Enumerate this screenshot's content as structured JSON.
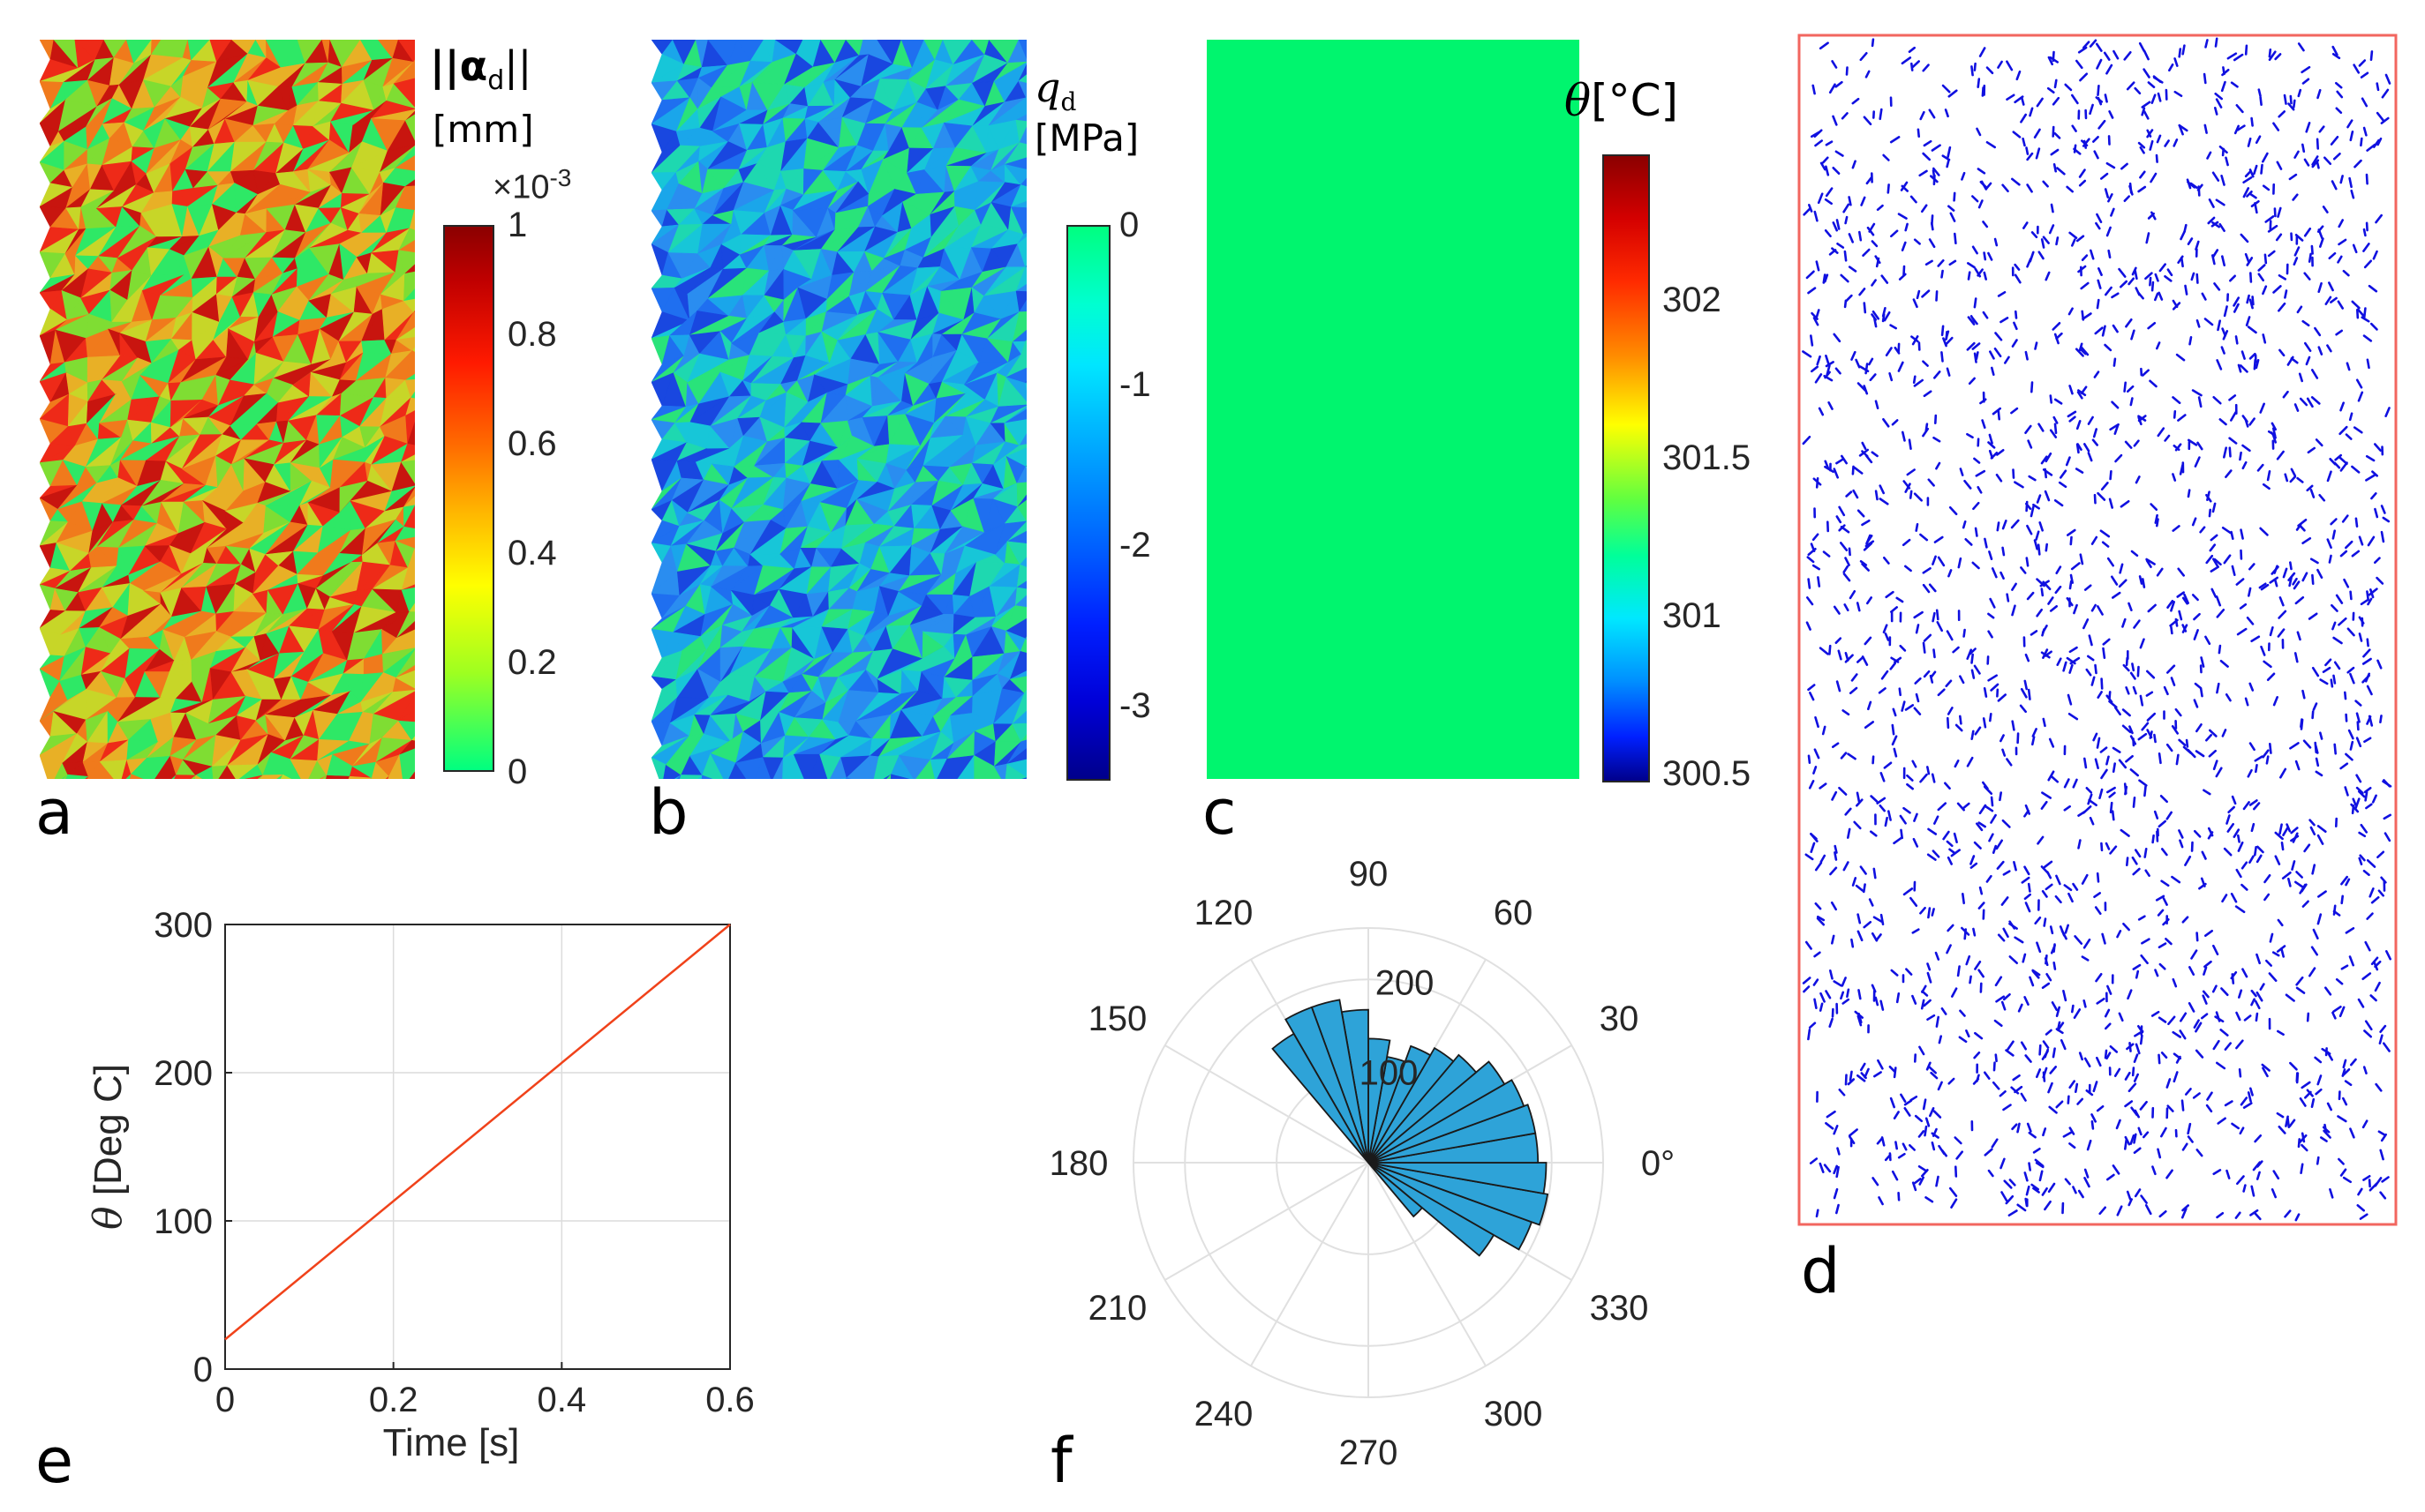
{
  "panels": {
    "a": {
      "label": "a",
      "cb_title_line1": "||α",
      "cb_title_sub": "d",
      "cb_title_line1_end": "||",
      "cb_title_line2": "[mm]",
      "multiplier_base": "×10",
      "multiplier_exp": "-3",
      "ticks": [
        "1",
        "0.8",
        "0.6",
        "0.4",
        "0.2",
        "0"
      ],
      "palette": [
        "#2ee866",
        "#7fdd33",
        "#c7d628",
        "#e8b026",
        "#f07a1c",
        "#ee2a18",
        "#c8150f"
      ]
    },
    "b": {
      "label": "b",
      "cb_title_line1": "q",
      "cb_title_sub": "d",
      "cb_title_line2": "[MPa]",
      "ticks": [
        "0",
        "-1",
        "-2",
        "-3"
      ],
      "palette": [
        "#29e37a",
        "#1ed8b0",
        "#17c6d8",
        "#1aa6ea",
        "#2a8df0",
        "#1f6ff0",
        "#1947e0"
      ]
    },
    "c": {
      "label": "c",
      "cb_title_sym": "θ",
      "cb_title_unit": "[°C]",
      "ticks": [
        "302",
        "301.5",
        "301",
        "300.5"
      ],
      "fill": "#00f56e"
    },
    "d": {
      "label": "d",
      "border_color": "#f2665f",
      "dash_color": "#1010e0"
    },
    "e": {
      "label": "e",
      "xlabel": "Time [s]",
      "ylabel_sym": "θ",
      "ylabel_text": " [Deg C]",
      "line_color": "#f0421a"
    },
    "f": {
      "label": "f",
      "bar_color": "#2ea3d8"
    }
  },
  "chart_data": [
    {
      "panel": "e",
      "type": "line",
      "title": "",
      "xlabel": "Time [s]",
      "ylabel": "θ [Deg C]",
      "xlim": [
        0,
        0.6
      ],
      "ylim": [
        0,
        300
      ],
      "xticks": [
        0,
        0.2,
        0.4,
        0.6
      ],
      "xtick_labels": [
        "0",
        "0.2",
        "0.4",
        "0.6"
      ],
      "yticks": [
        0,
        100,
        200,
        300
      ],
      "ytick_labels": [
        "0",
        "100",
        "200",
        "300"
      ],
      "grid": true,
      "series": [
        {
          "x": [
            0,
            0.6
          ],
          "y": [
            20,
            300
          ]
        }
      ]
    },
    {
      "panel": "f",
      "type": "polar-histogram",
      "angle_ticks": [
        0,
        30,
        60,
        90,
        120,
        150,
        180,
        210,
        240,
        270,
        300,
        330
      ],
      "angle_labels": [
        "0°",
        "30",
        "60",
        "90",
        "120",
        "150",
        "180",
        "210",
        "240",
        "270",
        "300",
        "330"
      ],
      "radial_ticks": [
        100,
        200
      ],
      "radial_labels": [
        "100",
        "200"
      ],
      "r_max": 210,
      "bin_width_deg": 10,
      "bins": [
        {
          "start": -50,
          "value": 85
        },
        {
          "start": -40,
          "value": 175
        },
        {
          "start": -30,
          "value": 210
        },
        {
          "start": -20,
          "value": 220
        },
        {
          "start": -10,
          "value": 215
        },
        {
          "start": 0,
          "value": 205
        },
        {
          "start": 10,
          "value": 205
        },
        {
          "start": 20,
          "value": 200
        },
        {
          "start": 30,
          "value": 190
        },
        {
          "start": 40,
          "value": 170
        },
        {
          "start": 50,
          "value": 160
        },
        {
          "start": 60,
          "value": 150
        },
        {
          "start": 70,
          "value": 130
        },
        {
          "start": 80,
          "value": 150
        },
        {
          "start": 90,
          "value": 185
        },
        {
          "start": 100,
          "value": 200
        },
        {
          "start": 110,
          "value": 200
        },
        {
          "start": 120,
          "value": 180
        }
      ]
    }
  ]
}
